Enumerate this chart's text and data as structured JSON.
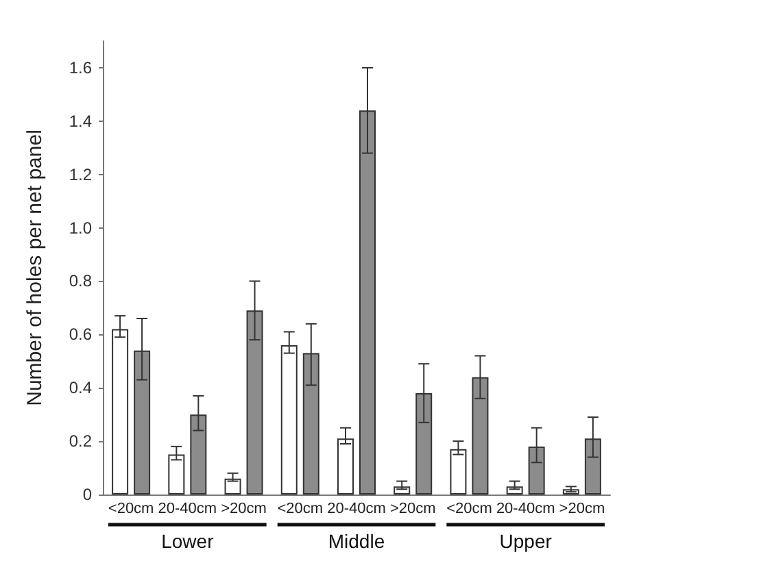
{
  "chart_data": {
    "type": "bar",
    "ylabel": "Number of holes per net panel",
    "categories": [
      "<20cm",
      "20-40cm",
      ">20cm",
      "<20cm",
      "20-40cm",
      ">20cm",
      "<20cm",
      "20-40cm",
      ">20cm"
    ],
    "series": [
      {
        "color": "#ffffff",
        "values": [
          0.62,
          0.15,
          0.06,
          0.56,
          0.21,
          0.03,
          0.17,
          0.03,
          0.02
        ],
        "errors": [
          [
            0.59,
            0.67
          ],
          [
            0.13,
            0.18
          ],
          [
            0.05,
            0.08
          ],
          [
            0.53,
            0.61
          ],
          [
            0.19,
            0.25
          ],
          [
            0.02,
            0.05
          ],
          [
            0.15,
            0.2
          ],
          [
            0.02,
            0.05
          ],
          [
            0.01,
            0.03
          ]
        ]
      },
      {
        "color": "#8c8c8c",
        "values": [
          0.54,
          0.3,
          0.69,
          0.53,
          1.44,
          0.38,
          0.44,
          0.18,
          0.21
        ],
        "errors": [
          [
            0.43,
            0.66
          ],
          [
            0.24,
            0.37
          ],
          [
            0.58,
            0.8
          ],
          [
            0.41,
            0.64
          ],
          [
            1.28,
            1.6
          ],
          [
            0.27,
            0.49
          ],
          [
            0.36,
            0.52
          ],
          [
            0.12,
            0.25
          ],
          [
            0.14,
            0.29
          ]
        ]
      }
    ],
    "annotations": [
      "Lower",
      "Middle",
      "Upper"
    ],
    "ylim": [
      0,
      1.7
    ],
    "yticks": [
      0,
      0.2,
      0.4,
      0.6,
      0.8,
      {
        "value": 1,
        "label": "1.0"
      },
      1.2,
      1.4,
      1.6
    ],
    "grid": false
  }
}
